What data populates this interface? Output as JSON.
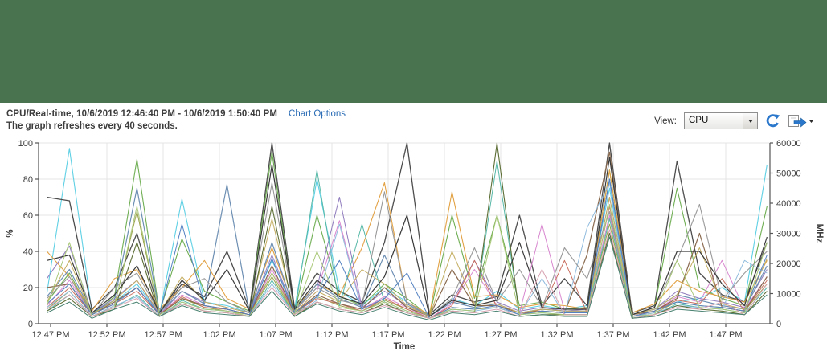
{
  "header": {
    "band_color": "#49724f"
  },
  "toolbar": {
    "title": "CPU/Real-time, 10/6/2019 12:46:40 PM - 10/6/2019 1:50:40 PM",
    "chart_options_label": "Chart Options",
    "subtitle": "The graph refreshes every 40 seconds.",
    "view_label": "View:",
    "view_value": "CPU",
    "icons": {
      "combo_arrow": "chevron-down",
      "refresh": "refresh-circular-arrow",
      "export": "export-document-arrow"
    },
    "accent_blue": "#2a77cc"
  },
  "chart_data": {
    "type": "line",
    "title": "CPU/Real-time",
    "xlabel": "Time",
    "ylabel_left": "%",
    "ylabel_right": "MHz",
    "ylim_left": [
      0,
      100
    ],
    "ylim_right": [
      0,
      60000
    ],
    "y_ticks_left": [
      0,
      20,
      40,
      60,
      80,
      100
    ],
    "y_ticks_right": [
      0,
      10000,
      20000,
      30000,
      40000,
      50000,
      60000
    ],
    "x_tick_labels": [
      "12:47 PM",
      "12:52 PM",
      "12:57 PM",
      "1:02 PM",
      "1:07 PM",
      "1:12 PM",
      "1:17 PM",
      "1:22 PM",
      "1:27 PM",
      "1:32 PM",
      "1:37 PM",
      "1:42 PM",
      "1:47 PM"
    ],
    "x_tick_minutes": [
      0.33,
      5.33,
      10.33,
      15.33,
      20.33,
      25.33,
      30.33,
      35.33,
      40.33,
      45.33,
      50.33,
      55.33,
      60.33
    ],
    "x_start_minute": 0,
    "x_step_minutes": 2,
    "x_range_minutes": [
      0,
      64
    ],
    "grid": true,
    "legend": "none",
    "grid_color": "#e4e4e4",
    "axis_color": "#555555",
    "tick_text_color": "#3d3d3d",
    "series": [
      {
        "color": "#5fd0e4",
        "width": 1.1,
        "values": [
          17,
          97,
          6,
          12,
          22,
          5,
          69,
          12,
          10,
          6,
          35,
          8,
          80,
          18,
          10,
          20,
          12,
          4,
          14,
          10,
          18,
          8,
          10,
          8,
          10,
          75,
          5,
          8,
          12,
          14,
          20,
          12,
          88
        ]
      },
      {
        "color": "#4d4d4d",
        "width": 1.3,
        "values": [
          70,
          68,
          8,
          20,
          50,
          6,
          22,
          15,
          40,
          8,
          100,
          9,
          28,
          18,
          12,
          45,
          100,
          5,
          16,
          12,
          15,
          60,
          10,
          25,
          10,
          100,
          6,
          10,
          90,
          28,
          16,
          12,
          45
        ]
      },
      {
        "color": "#6fae53",
        "width": 1.1,
        "values": [
          12,
          28,
          5,
          15,
          91,
          6,
          47,
          18,
          12,
          7,
          95,
          6,
          60,
          15,
          10,
          22,
          14,
          4,
          60,
          14,
          60,
          10,
          12,
          8,
          9,
          85,
          5,
          9,
          75,
          20,
          14,
          10,
          65
        ]
      },
      {
        "color": "#e2a245",
        "width": 1.1,
        "values": [
          40,
          26,
          7,
          25,
          30,
          8,
          20,
          35,
          14,
          8,
          42,
          8,
          22,
          16,
          42,
          78,
          12,
          5,
          73,
          15,
          16,
          9,
          11,
          10,
          8,
          85,
          6,
          11,
          24,
          18,
          15,
          12,
          35
        ]
      },
      {
        "color": "#8f7bbd",
        "width": 1.0,
        "values": [
          25,
          43,
          6,
          14,
          24,
          5,
          18,
          12,
          9,
          6,
          38,
          7,
          20,
          70,
          9,
          18,
          10,
          4,
          12,
          35,
          12,
          7,
          9,
          7,
          8,
          70,
          5,
          8,
          18,
          14,
          12,
          9,
          30
        ]
      },
      {
        "color": "#d887cf",
        "width": 1.0,
        "values": [
          10,
          24,
          5,
          12,
          20,
          5,
          16,
          10,
          8,
          5,
          30,
          6,
          18,
          57,
          8,
          15,
          9,
          3,
          11,
          30,
          10,
          6,
          55,
          7,
          7,
          60,
          4,
          7,
          15,
          12,
          35,
          8,
          26
        ]
      },
      {
        "color": "#9aa24b",
        "width": 1.0,
        "values": [
          8,
          18,
          4,
          10,
          62,
          5,
          14,
          9,
          7,
          5,
          26,
          5,
          15,
          10,
          7,
          13,
          8,
          3,
          9,
          8,
          9,
          5,
          7,
          6,
          6,
          55,
          4,
          6,
          12,
          10,
          9,
          7,
          22
        ]
      },
      {
        "color": "#6d8fb3",
        "width": 1.2,
        "values": [
          15,
          30,
          6,
          13,
          75,
          6,
          18,
          11,
          77,
          6,
          45,
          7,
          22,
          14,
          9,
          38,
          11,
          4,
          12,
          9,
          11,
          6,
          8,
          7,
          7,
          80,
          5,
          8,
          16,
          13,
          10,
          8,
          32
        ]
      },
      {
        "color": "#c96f5f",
        "width": 1.0,
        "values": [
          9,
          20,
          5,
          11,
          18,
          5,
          15,
          9,
          8,
          5,
          28,
          6,
          14,
          11,
          7,
          14,
          8,
          3,
          10,
          35,
          9,
          5,
          8,
          35,
          6,
          65,
          4,
          7,
          13,
          11,
          25,
          7,
          24
        ]
      },
      {
        "color": "#57b8a7",
        "width": 1.0,
        "values": [
          7,
          16,
          4,
          9,
          16,
          4,
          13,
          8,
          7,
          4,
          24,
          5,
          85,
          10,
          55,
          12,
          7,
          3,
          8,
          7,
          90,
          5,
          6,
          5,
          5,
          58,
          4,
          5,
          11,
          9,
          8,
          6,
          20
        ]
      },
      {
        "color": "#8a6a4f",
        "width": 1.2,
        "values": [
          20,
          22,
          5,
          12,
          20,
          5,
          14,
          10,
          8,
          5,
          32,
          6,
          16,
          11,
          8,
          20,
          9,
          4,
          30,
          10,
          10,
          6,
          7,
          6,
          38,
          95,
          5,
          7,
          14,
          50,
          9,
          7,
          26
        ]
      },
      {
        "color": "#c4ae62",
        "width": 1.0,
        "values": [
          12,
          35,
          5,
          13,
          24,
          6,
          26,
          12,
          9,
          6,
          58,
          6,
          18,
          12,
          30,
          22,
          10,
          4,
          40,
          11,
          11,
          6,
          8,
          7,
          7,
          70,
          5,
          8,
          16,
          42,
          11,
          8,
          36
        ]
      },
      {
        "color": "#90bbdd",
        "width": 1.0,
        "values": [
          9,
          18,
          4,
          10,
          15,
          4,
          12,
          8,
          7,
          4,
          22,
          5,
          13,
          55,
          7,
          12,
          7,
          3,
          8,
          7,
          9,
          5,
          25,
          5,
          53,
          78,
          4,
          6,
          10,
          9,
          8,
          35,
          28
        ]
      },
      {
        "color": "#5d6e35",
        "width": 1.1,
        "values": [
          7,
          14,
          4,
          8,
          45,
          4,
          11,
          7,
          6,
          4,
          65,
          4,
          12,
          8,
          6,
          11,
          6,
          3,
          7,
          6,
          100,
          4,
          5,
          5,
          5,
          50,
          3,
          5,
          10,
          8,
          7,
          5,
          18
        ]
      },
      {
        "color": "#999999",
        "width": 1.1,
        "values": [
          14,
          26,
          5,
          20,
          28,
          6,
          20,
          25,
          12,
          6,
          78,
          7,
          20,
          13,
          10,
          73,
          12,
          4,
          14,
          42,
          12,
          30,
          9,
          42,
          25,
          62,
          5,
          9,
          35,
          66,
          13,
          28,
          40
        ]
      },
      {
        "color": "#5381c1",
        "width": 1.0,
        "values": [
          11,
          22,
          5,
          11,
          20,
          5,
          55,
          10,
          8,
          5,
          36,
          6,
          15,
          35,
          8,
          14,
          28,
          3,
          9,
          8,
          10,
          5,
          7,
          6,
          6,
          80,
          4,
          7,
          12,
          10,
          9,
          7,
          38
        ]
      },
      {
        "color": "#3a3a3a",
        "width": 1.2,
        "values": [
          35,
          38,
          6,
          16,
          32,
          6,
          24,
          13,
          30,
          7,
          88,
          8,
          24,
          15,
          11,
          26,
          60,
          4,
          13,
          10,
          13,
          45,
          9,
          8,
          8,
          92,
          5,
          9,
          40,
          40,
          22,
          10,
          48
        ]
      },
      {
        "color": "#a9c878",
        "width": 1.0,
        "values": [
          10,
          45,
          4,
          9,
          65,
          5,
          12,
          8,
          7,
          4,
          28,
          5,
          40,
          9,
          7,
          12,
          7,
          3,
          8,
          7,
          60,
          5,
          6,
          5,
          5,
          66,
          4,
          5,
          35,
          9,
          8,
          6,
          45
        ]
      },
      {
        "color": "#d8a3b2",
        "width": 1.0,
        "values": [
          8,
          16,
          4,
          9,
          14,
          4,
          11,
          7,
          6,
          4,
          20,
          5,
          12,
          8,
          6,
          10,
          6,
          3,
          7,
          6,
          8,
          4,
          30,
          5,
          5,
          52,
          3,
          5,
          9,
          8,
          12,
          5,
          22
        ]
      },
      {
        "color": "#47806f",
        "width": 1.0,
        "values": [
          6,
          12,
          3,
          8,
          12,
          4,
          10,
          6,
          5,
          4,
          18,
          4,
          11,
          7,
          5,
          9,
          5,
          2,
          6,
          5,
          7,
          4,
          5,
          4,
          4,
          48,
          3,
          4,
          8,
          7,
          6,
          5,
          16
        ]
      }
    ]
  }
}
